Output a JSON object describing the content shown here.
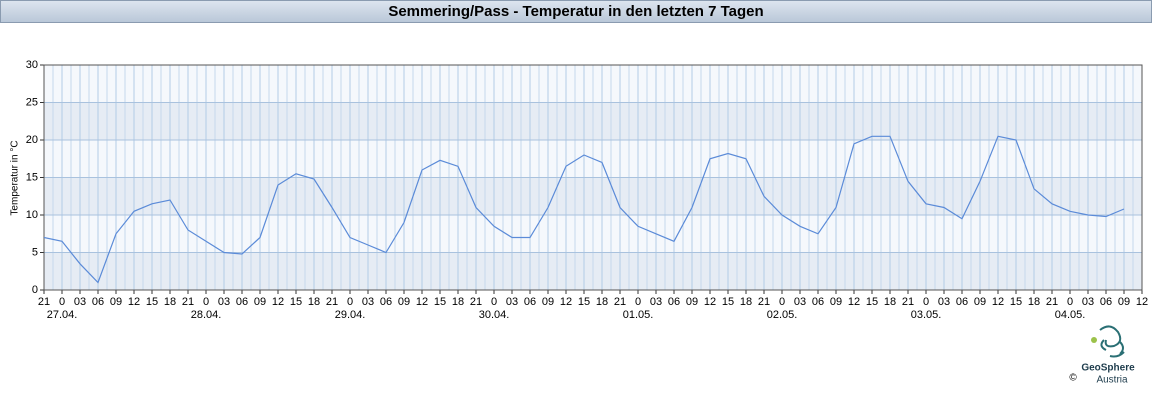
{
  "chart_data": {
    "type": "line",
    "title": "Semmering/Pass - Temperatur in den letzten 7 Tagen",
    "y_label": "Temperatur in °C",
    "categories": [
      "21",
      "0",
      "03",
      "06",
      "09",
      "12",
      "15",
      "18",
      "21",
      "0",
      "03",
      "06",
      "09",
      "12",
      "15",
      "18",
      "21",
      "0",
      "03",
      "06",
      "09",
      "12",
      "15",
      "18",
      "21",
      "0",
      "03",
      "06",
      "09",
      "12",
      "15",
      "18",
      "21",
      "0",
      "03",
      "06",
      "09",
      "12",
      "15",
      "18",
      "21",
      "0",
      "03",
      "06",
      "09",
      "12",
      "15",
      "18",
      "21",
      "0",
      "03",
      "06",
      "09",
      "12",
      "15",
      "18",
      "21",
      "0",
      "03",
      "06",
      "09",
      "12"
    ],
    "dates": [
      null,
      "27.04.",
      null,
      null,
      null,
      null,
      null,
      null,
      null,
      "28.04.",
      null,
      null,
      null,
      null,
      null,
      null,
      null,
      "29.04.",
      null,
      null,
      null,
      null,
      null,
      null,
      null,
      "30.04.",
      null,
      null,
      null,
      null,
      null,
      null,
      null,
      "01.05.",
      null,
      null,
      null,
      null,
      null,
      null,
      null,
      "02.05.",
      null,
      null,
      null,
      null,
      null,
      null,
      null,
      "03.05.",
      null,
      null,
      null,
      null,
      null,
      null,
      null,
      "04.05.",
      null,
      null,
      null,
      null
    ],
    "values": [
      7.0,
      6.5,
      3.5,
      1.0,
      7.5,
      10.5,
      11.5,
      12.0,
      8.0,
      6.5,
      5.0,
      4.8,
      7.0,
      14.0,
      15.5,
      14.8,
      11.0,
      7.0,
      6.0,
      5.0,
      9.0,
      16.0,
      17.3,
      16.5,
      11.0,
      8.5,
      7.0,
      7.0,
      11.0,
      16.5,
      18.0,
      17.0,
      11.0,
      8.5,
      7.5,
      6.5,
      11.0,
      17.5,
      18.2,
      17.5,
      12.5,
      10.0,
      8.5,
      7.5,
      11.0,
      19.5,
      20.5,
      20.5,
      14.5,
      11.5,
      11.0,
      9.5,
      14.5,
      20.5,
      20.0,
      13.5,
      11.5,
      10.5,
      10.0,
      9.8,
      10.8,
      null
    ],
    "color": "#5b8bd8",
    "ylim": [
      0,
      30
    ],
    "yticks": [
      0,
      5,
      10,
      15,
      20,
      25,
      30
    ],
    "grid": true
  },
  "logo": {
    "name": "GeoSphere",
    "sub": "Austria",
    "copyright": "©"
  }
}
